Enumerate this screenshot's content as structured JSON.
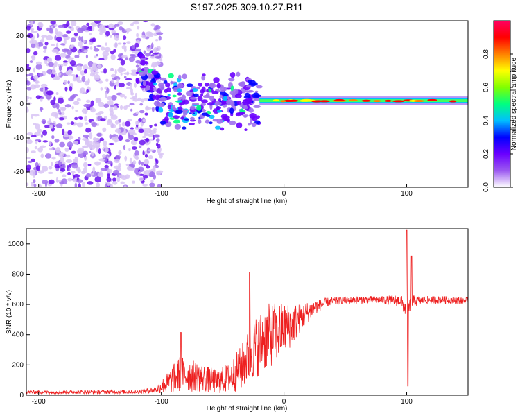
{
  "title": "S197.2025.309.10.27.R11",
  "chart_data": [
    {
      "type": "heatmap",
      "panel": "top",
      "title": "S197.2025.309.10.27.R11",
      "xlabel": "Height of straight line (km)",
      "ylabel": "Frequency (Hz)",
      "xlim": [
        -210,
        150
      ],
      "ylim": [
        -24.5,
        24.5
      ],
      "xticks": [
        -200,
        -100,
        0,
        100
      ],
      "xtick_labels": [
        "-200",
        "-100",
        "0",
        "100"
      ],
      "yticks": [
        20,
        10,
        0,
        -10,
        -20
      ],
      "ytick_labels": [
        "20",
        "10",
        "0",
        "-10",
        "-20"
      ],
      "description_of_structure": {
        "noise_region_x": [
          -210,
          -100
        ],
        "transition_region_x": [
          -120,
          -20
        ],
        "band_center_hz": 1,
        "band_start_x": -20
      },
      "colorbar": {
        "label": "Normalized spectral amplitude",
        "range": [
          0,
          1
        ],
        "ticks": [
          0.0,
          0.2,
          0.4,
          0.6,
          0.8
        ],
        "tick_labels": [
          "0.0",
          "0.2",
          "0.4",
          "0.6",
          "0.8"
        ],
        "colors": [
          "#ffffff",
          "#9b59f0",
          "#6a00ff",
          "#0000ff",
          "#00bfff",
          "#00ff80",
          "#80ff00",
          "#ffff00",
          "#ff8000",
          "#ff0000",
          "#ff0060"
        ]
      }
    },
    {
      "type": "line",
      "panel": "bottom",
      "xlabel": "Height of straight line (km)",
      "ylabel": "SNR (10 * v/v)",
      "xlim": [
        -210,
        150
      ],
      "ylim": [
        0,
        1100
      ],
      "xticks": [
        -200,
        -100,
        0,
        100
      ],
      "xtick_labels": [
        "-200",
        "-100",
        "0",
        "100"
      ],
      "yticks": [
        0,
        200,
        400,
        600,
        800,
        1000
      ],
      "ytick_labels": [
        "0",
        "200",
        "400",
        "600",
        "800",
        "1000"
      ],
      "color": "#ee2020",
      "envelope": {
        "x": [
          -210,
          -120,
          -105,
          -95,
          -85,
          -75,
          -65,
          -55,
          -45,
          -35,
          -25,
          -15,
          -5,
          5,
          15,
          25,
          35,
          45,
          60,
          80,
          95,
          100,
          105,
          115,
          130,
          150
        ],
        "mean": [
          20,
          22,
          35,
          80,
          140,
          130,
          110,
          90,
          110,
          180,
          300,
          380,
          420,
          460,
          520,
          580,
          615,
          625,
          630,
          630,
          625,
          560,
          620,
          630,
          630,
          625
        ],
        "jitter": [
          12,
          12,
          20,
          70,
          120,
          110,
          90,
          80,
          100,
          150,
          200,
          220,
          200,
          150,
          90,
          50,
          30,
          25,
          25,
          25,
          40,
          60,
          40,
          25,
          25,
          25
        ]
      },
      "spikes": [
        {
          "x": -84,
          "y": 415
        },
        {
          "x": -28,
          "y": 810
        },
        {
          "x": 100,
          "y": 1090
        },
        {
          "x": 101,
          "y": 60
        },
        {
          "x": 104,
          "y": 920
        }
      ]
    }
  ]
}
